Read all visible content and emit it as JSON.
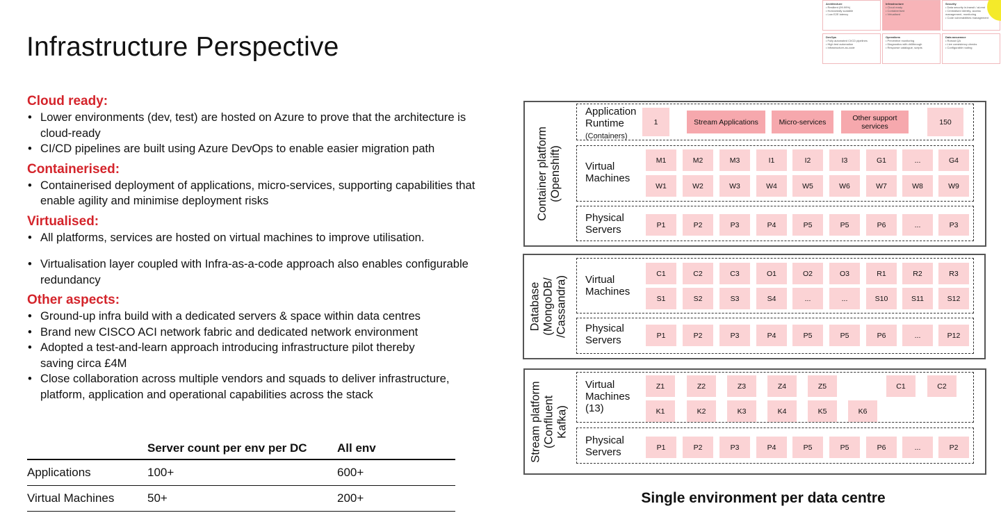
{
  "title": "Infrastructure Perspective",
  "sections": [
    {
      "heading": "Cloud ready:",
      "items": [
        "Lower environments (dev, test) are hosted on Azure to prove that the architecture is cloud-ready",
        "CI/CD pipelines are built using Azure DevOps to enable easier migration path"
      ]
    },
    {
      "heading": "Containerised:",
      "items": [
        "Containerised deployment of applications, micro-services, supporting capabilities that enable agility and minimise deployment risks"
      ]
    },
    {
      "heading": "Virtualised:",
      "items": [
        "All platforms, services are hosted on virtual machines to improve utilisation.",
        "Virtualisation layer coupled with Infra-as-a-code approach also enables configurable redundancy"
      ]
    },
    {
      "heading": "Other aspects:",
      "items": [
        "Ground-up infra build with a dedicated servers & space within data centres",
        "Brand new CISCO ACI network fabric and dedicated network environment",
        "Adopted a test-and-learn approach introducing infrastructure pilot thereby saving circa £4M",
        "Close collaboration across multiple vendors and squads to deliver infrastructure, platform, application and operational capabilities across the stack"
      ]
    }
  ],
  "server_table": {
    "headers": [
      "",
      "Server count per env per DC",
      "All env"
    ],
    "rows": [
      [
        "Applications",
        "100+",
        "600+"
      ],
      [
        "Virtual Machines",
        "50+",
        "200+"
      ]
    ]
  },
  "thumbnail": [
    {
      "title": "Architecture",
      "lines": [
        "Resilient (99.99%)",
        "Horizontally scalable",
        "Low E2E latency"
      ]
    },
    {
      "title": "Infrastructure",
      "lines": [
        "Cloud ready",
        "Containerised",
        "Virtualised"
      ]
    },
    {
      "title": "Security",
      "lines": [
        "Data security in-transit / at-rest",
        "Centralised identity, access management, monitoring",
        "Code vulnerabilities management"
      ]
    },
    {
      "title": "DevOps",
      "lines": [
        "Fully automated CI/CD pipelines",
        "High test automation",
        "Infrastructure-as-code"
      ]
    },
    {
      "title": "Operations",
      "lines": [
        "Preventive monitoring",
        "Diagnostics with drillthrough",
        "Response catalogue, scripts"
      ]
    },
    {
      "title": "Data assurance",
      "lines": [
        "Robust QA",
        "Live consistency checks",
        "Configurable routing"
      ]
    }
  ],
  "platforms": [
    {
      "label": "Container platform\n(Openshift)",
      "tiers": [
        {
          "label": "Application\nRuntime",
          "sub": "(Containers)",
          "rows": [
            [
              "1",
              "Stream Applications",
              "Micro-services",
              "Other support services",
              "150"
            ]
          ]
        },
        {
          "label": "Virtual\nMachines",
          "rows": [
            [
              "M1",
              "M2",
              "M3",
              "I1",
              "I2",
              "I3",
              "G1",
              "...",
              "G4"
            ],
            [
              "W1",
              "W2",
              "W3",
              "W4",
              "W5",
              "W6",
              "W7",
              "W8",
              "W9"
            ]
          ]
        },
        {
          "label": "Physical\nServers",
          "rows": [
            [
              "P1",
              "P2",
              "P3",
              "P4",
              "P5",
              "P5",
              "P6",
              "...",
              "P3"
            ]
          ]
        }
      ]
    },
    {
      "label": "Database\n(MongoDB/\n/Cassandra)",
      "tiers": [
        {
          "label": "Virtual\nMachines",
          "rows": [
            [
              "C1",
              "C2",
              "C3",
              "O1",
              "O2",
              "O3",
              "R1",
              "R2",
              "R3"
            ],
            [
              "S1",
              "S2",
              "S3",
              "S4",
              "...",
              "...",
              "S10",
              "S11",
              "S12"
            ]
          ]
        },
        {
          "label": "Physical\nServers",
          "rows": [
            [
              "P1",
              "P2",
              "P3",
              "P4",
              "P5",
              "P5",
              "P6",
              "...",
              "P12"
            ]
          ]
        }
      ]
    },
    {
      "label": "Stream platform\n(Confluent\nKafka)",
      "tiers": [
        {
          "label": "Virtual\nMachines\n(13)",
          "rows": [
            [
              "Z1",
              "Z2",
              "Z3",
              "Z4",
              "Z5",
              "",
              "C1",
              "C2"
            ],
            [
              "K1",
              "K2",
              "K3",
              "K4",
              "K5",
              "K6"
            ]
          ]
        },
        {
          "label": "Physical\nServers",
          "rows": [
            [
              "P1",
              "P2",
              "P3",
              "P4",
              "P5",
              "P5",
              "P6",
              "...",
              "P2"
            ]
          ]
        }
      ]
    }
  ],
  "caption": "Single environment per data centre"
}
